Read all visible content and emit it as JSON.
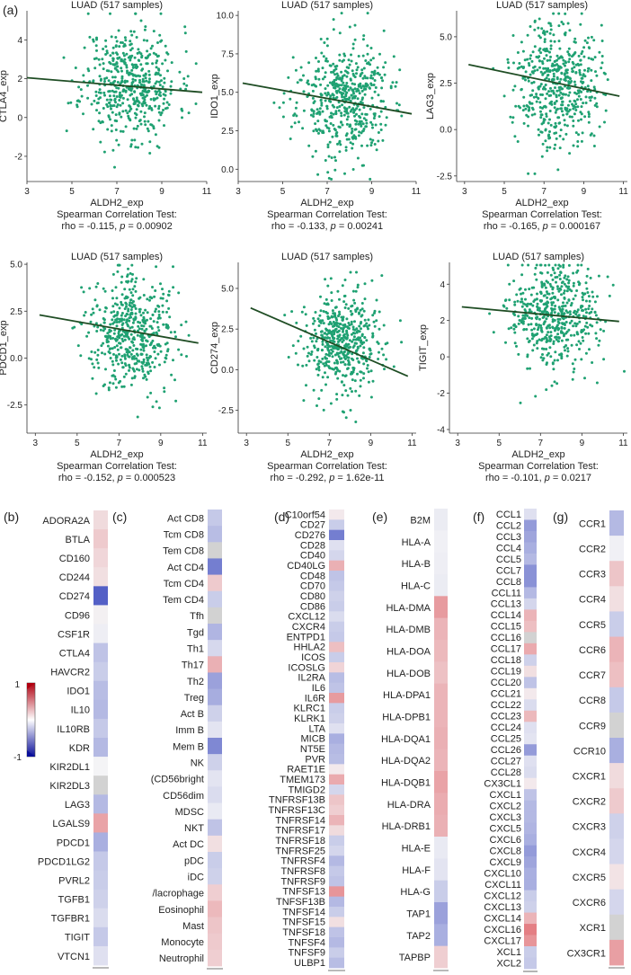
{
  "figure": {
    "colors": {
      "point": "#1fa172",
      "fit": "#1f4d24",
      "high": "#d62027",
      "low": "#1f2fb6",
      "neutral": "#f4f4f6",
      "na": "#d2d2d2"
    },
    "legend": {
      "max": "1",
      "min": "-1"
    }
  },
  "chart_data": [
    {
      "type": "scatter",
      "panel": "(a)",
      "title": "LUAD (517 samples)",
      "xlabel": "ALDH2_exp",
      "ylabel": "CTLA4_exp",
      "xlim": [
        3,
        11
      ],
      "ylim": [
        -3.3,
        5.5
      ],
      "xticks": [
        3,
        5,
        7,
        9,
        11
      ],
      "yticks": [
        -2,
        0,
        2,
        4
      ],
      "fit": {
        "x": [
          3.0,
          10.8
        ],
        "y": [
          2.05,
          1.3
        ]
      },
      "stat_title": "Spearman Correlation Test:",
      "rho": "-0.115",
      "p": "0.00902",
      "cloud": {
        "n": 517,
        "cx": 7.6,
        "sx": 1.05,
        "cy": 1.8,
        "sy": 1.45,
        "seed": 11
      }
    },
    {
      "type": "scatter",
      "title": "LUAD (517 samples)",
      "xlabel": "ALDH2_exp",
      "ylabel": "IDO1_exp",
      "xlim": [
        3,
        11
      ],
      "ylim": [
        -0.8,
        10.3
      ],
      "xticks": [
        3,
        5,
        7,
        9,
        11
      ],
      "ytick_labels": [
        "0.0",
        "2.5",
        "5.0",
        "7.5",
        "10.0"
      ],
      "yticks": [
        0,
        2.5,
        5,
        7.5,
        10
      ],
      "fit": {
        "x": [
          3.2,
          10.8
        ],
        "y": [
          5.6,
          3.6
        ]
      },
      "stat_title": "Spearman Correlation Test:",
      "rho": "-0.133",
      "p": "0.00241",
      "cloud": {
        "n": 517,
        "cx": 7.7,
        "sx": 1.05,
        "cy": 4.5,
        "sy": 1.9,
        "seed": 23
      }
    },
    {
      "type": "scatter",
      "title": "LUAD (517 samples)",
      "xlabel": "ALDH2_exp",
      "ylabel": "LAG3_exp",
      "xlim": [
        2.6,
        11.2
      ],
      "ylim": [
        -2.8,
        6.4
      ],
      "xticks": [
        3,
        5,
        7,
        9,
        11
      ],
      "ytick_labels": [
        "-2.5",
        "0.0",
        "2.5",
        "5.0"
      ],
      "yticks": [
        -2.5,
        0,
        2.5,
        5
      ],
      "fit": {
        "x": [
          3.2,
          10.8
        ],
        "y": [
          3.5,
          1.8
        ]
      },
      "stat_title": "Spearman Correlation Test:",
      "rho": "-0.165",
      "p": "0.000167",
      "cloud": {
        "n": 517,
        "cx": 7.7,
        "sx": 1.05,
        "cy": 2.6,
        "sy": 1.7,
        "seed": 37
      }
    },
    {
      "type": "scatter",
      "title": "LUAD (517 samples)",
      "xlabel": "ALDH2_exp",
      "ylabel": "PDCD1_exp",
      "xlim": [
        2.6,
        11.2
      ],
      "ylim": [
        -4.0,
        5.1
      ],
      "xticks": [
        3,
        5,
        7,
        9,
        11
      ],
      "ytick_labels": [
        "-2.5",
        "0.0",
        "2.5",
        "5.0"
      ],
      "yticks": [
        -2.5,
        0,
        2.5,
        5
      ],
      "fit": {
        "x": [
          3.2,
          10.8
        ],
        "y": [
          2.3,
          0.8
        ]
      },
      "stat_title": "Spearman Correlation Test:",
      "rho": "-0.152",
      "p": "0.000523",
      "cloud": {
        "n": 517,
        "cx": 7.6,
        "sx": 1.05,
        "cy": 1.3,
        "sy": 1.55,
        "seed": 41
      }
    },
    {
      "type": "scatter",
      "title": "LUAD (517 samples)",
      "xlabel": "ALDH2_exp",
      "ylabel": "CD274_exp",
      "xlim": [
        2.6,
        11.2
      ],
      "ylim": [
        -3.9,
        6.6
      ],
      "xticks": [
        3,
        5,
        7,
        9,
        11
      ],
      "ytick_labels": [
        "-2.5",
        "0.0",
        "2.5",
        "5.0"
      ],
      "yticks": [
        -2.5,
        0,
        2.5,
        5
      ],
      "fit": {
        "x": [
          3.2,
          10.8
        ],
        "y": [
          3.8,
          -0.4
        ]
      },
      "stat_title": "Spearman Correlation Test:",
      "rho": "-0.292",
      "p": "1.62e-11",
      "cloud": {
        "n": 517,
        "cx": 7.7,
        "sx": 1.0,
        "cy": 1.6,
        "sy": 1.6,
        "seed": 53
      }
    },
    {
      "type": "scatter",
      "title": "LUAD (517 samples)",
      "xlabel": "ALDH2_exp",
      "ylabel": "TIGIT_exp",
      "xlim": [
        2.6,
        11.2
      ],
      "ylim": [
        -4.2,
        5.2
      ],
      "xticks": [
        3,
        5,
        7,
        9,
        11
      ],
      "yticks": [
        -4,
        -2,
        0,
        2,
        4
      ],
      "fit": {
        "x": [
          3.2,
          10.8
        ],
        "y": [
          2.75,
          1.95
        ]
      },
      "stat_title": "Spearman Correlation Test:",
      "rho": "-0.101",
      "p": "0.0217",
      "cloud": {
        "n": 517,
        "cx": 7.6,
        "sx": 1.05,
        "cy": 2.2,
        "sy": 1.4,
        "seed": 67
      }
    },
    {
      "type": "heatmap",
      "panel": "(b)",
      "rows": [
        "ADORA2A",
        "BTLA",
        "CD160",
        "CD244",
        "CD274",
        "CD96",
        "CSF1R",
        "CTLA4",
        "HAVCR2",
        "IDO1",
        "IL10",
        "IL10RB",
        "KDR",
        "KIR2DL1",
        "KIR2DL3",
        "LAG3",
        "LGALS9",
        "PDCD1",
        "PDCD1LG2",
        "PVRL2",
        "TGFB1",
        "TGFBR1",
        "TIGIT",
        "VTCN1"
      ],
      "values": [
        0.12,
        0.2,
        0.14,
        0.1,
        -0.75,
        0.02,
        -0.03,
        -0.25,
        -0.2,
        -0.28,
        -0.3,
        -0.22,
        -0.3,
        0.0,
        null,
        -0.3,
        0.38,
        -0.35,
        -0.22,
        -0.2,
        -0.18,
        -0.12,
        -0.22,
        -0.1
      ]
    },
    {
      "type": "heatmap",
      "panel": "(c)",
      "rows": [
        "Act CD8",
        "Tcm CD8",
        "Tem CD8",
        "Act CD4",
        "Tcm CD4",
        "Tem CD4",
        "Tfh",
        "Tgd",
        "Th1",
        "Th17",
        "Th2",
        "Treg",
        "Act B",
        "Imm B",
        "Mem B",
        "NK",
        "(CD56bright",
        "CD56dim",
        "MDSC",
        "NKT",
        "Act DC",
        "pDC",
        "iDC",
        "/lacrophage",
        "Eosinophil",
        "Mast",
        "Monocyte",
        "Neutrophil"
      ],
      "values": [
        -0.22,
        -0.28,
        null,
        -0.6,
        0.2,
        -0.2,
        null,
        -0.32,
        -0.14,
        0.32,
        -0.42,
        -0.36,
        -0.18,
        -0.08,
        -0.55,
        -0.18,
        -0.08,
        -0.12,
        -0.05,
        -0.25,
        0.1,
        -0.2,
        -0.18,
        0.18,
        0.28,
        0.22,
        0.2,
        0.18
      ]
    },
    {
      "type": "heatmap",
      "panel": "(d)",
      "rows": [
        "C10orf54",
        "CD27",
        "CD276",
        "CD28",
        "CD40",
        "CD40LG",
        "CD48",
        "CD70",
        "CD80",
        "CD86",
        "CXCL12",
        "CXCR4",
        "ENTPD1",
        "HHLA2",
        "ICOS",
        "ICOSLG",
        "IL2RA",
        "IL6",
        "IL6R",
        "KLRC1",
        "KLRK1",
        "LTA",
        "MICB",
        "NT5E",
        "PVR",
        "RAET1E",
        "TMEM173",
        "TMIGD2",
        "TNFRSF13B",
        "TNFRSF13C",
        "TNFRSF14",
        "TNFRSF17",
        "TNFRSF18",
        "TNFRSF25",
        "TNFRSF4",
        "TNFRSF8",
        "TNFRSF9",
        "TNFSF13",
        "TNFSF13B",
        "TNFSF14",
        "TNFSF15",
        "TNFSF18",
        "TNFSF4",
        "TNFSF9",
        "ULBP1"
      ],
      "values": [
        0.05,
        -0.2,
        -0.6,
        -0.1,
        -0.15,
        0.32,
        -0.25,
        -0.22,
        -0.18,
        -0.2,
        -0.12,
        -0.2,
        -0.22,
        0.25,
        -0.2,
        0.15,
        -0.28,
        -0.25,
        0.42,
        -0.2,
        -0.18,
        -0.1,
        -0.35,
        -0.3,
        -0.28,
        0.05,
        0.35,
        -0.15,
        0.22,
        0.18,
        0.3,
        0.12,
        -0.2,
        -0.15,
        -0.3,
        -0.22,
        -0.25,
        0.45,
        -0.3,
        -0.2,
        0.1,
        -0.25,
        -0.3,
        -0.2,
        -0.28
      ]
    },
    {
      "type": "heatmap",
      "panel": "(e)",
      "rows": [
        "B2M",
        "HLA-A",
        "HLA-B",
        "HLA-C",
        "HLA-DMA",
        "HLA-DMB",
        "HLA-DOA",
        "HLA-DOB",
        "HLA-DPA1",
        "HLA-DPB1",
        "HLA-DQA1",
        "HLA-DQA2",
        "HLA-DQB1",
        "HLA-DRA",
        "HLA-DRB1",
        "HLA-E",
        "HLA-F",
        "HLA-G",
        "TAP1",
        "TAP2",
        "TAPBP"
      ],
      "values": [
        -0.04,
        -0.02,
        -0.03,
        -0.04,
        0.42,
        0.3,
        0.28,
        0.24,
        0.3,
        0.3,
        0.32,
        0.3,
        0.38,
        0.34,
        0.32,
        -0.05,
        -0.08,
        -0.2,
        -0.42,
        -0.35,
        0.18
      ]
    },
    {
      "type": "heatmap",
      "panel": "(f)",
      "rows": [
        "CCL1",
        "CCL2",
        "CCL3",
        "CCL4",
        "CCL5",
        "CCL7",
        "CCL8",
        "CCL11",
        "CCL13",
        "CCL14",
        "CCL15",
        "CCL16",
        "CCL17",
        "CCL18",
        "CCL19",
        "CCL20",
        "CCL21",
        "CCL22",
        "CCL23",
        "CCL24",
        "CCL25",
        "CCL26",
        "CCL27",
        "CCL28",
        "CX3CL1",
        "CXCL1",
        "CXCL2",
        "CXCL3",
        "CXCL5",
        "CXCL6",
        "CXCL8",
        "CXCL9",
        "CXCL10",
        "CXCL11",
        "CXCL12",
        "CXCL13",
        "CXCL14",
        "CXCL16",
        "CXCL17",
        "XCL1",
        "XCL2"
      ],
      "values": [
        -0.1,
        -0.45,
        -0.4,
        -0.35,
        -0.3,
        -0.5,
        -0.5,
        -0.3,
        -0.15,
        0.3,
        0.25,
        null,
        0.35,
        -0.18,
        0.1,
        -0.25,
        0.05,
        -0.12,
        0.28,
        -0.1,
        -0.08,
        -0.45,
        -0.1,
        -0.12,
        0.05,
        -0.25,
        -0.3,
        -0.3,
        -0.32,
        -0.35,
        -0.45,
        -0.4,
        -0.35,
        -0.35,
        -0.2,
        -0.18,
        0.3,
        0.55,
        0.45,
        -0.2,
        -0.22
      ]
    },
    {
      "type": "heatmap",
      "panel": "(g)",
      "rows": [
        "CCR1",
        "CCR2",
        "CCR3",
        "CCR4",
        "CCR5",
        "CCR6",
        "CCR7",
        "CCR8",
        "CCR9",
        "CCR10",
        "CXCR1",
        "CXCR2",
        "CXCR3",
        "CXCR4",
        "CXCR5",
        "CXCR6",
        "XCR1",
        "CX3CR1"
      ],
      "values": [
        -0.3,
        -0.02,
        0.22,
        0.1,
        -0.2,
        0.3,
        0.25,
        -0.22,
        null,
        -0.35,
        0.12,
        0.2,
        -0.18,
        -0.15,
        0.08,
        -0.15,
        null,
        0.4
      ]
    }
  ]
}
